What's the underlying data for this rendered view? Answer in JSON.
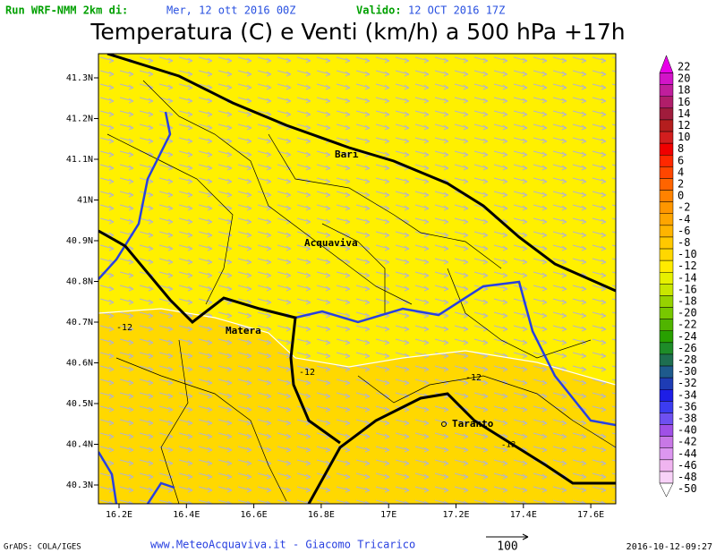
{
  "header": {
    "run_label": "Run WRF-NMM 2km di:",
    "run_date": "Mer, 12 ott 2016 00Z",
    "valid_label": "Valido:",
    "valid_date": "12 OCT 2016 17Z"
  },
  "title": "Temperatura (C) e Venti (km/h) a 500 hPa +17h",
  "map": {
    "lat_labels": [
      "41.3N",
      "41.2N",
      "41.1N",
      "41N",
      "40.9N",
      "40.8N",
      "40.7N",
      "40.6N",
      "40.5N",
      "40.4N",
      "40.3N"
    ],
    "lon_labels": [
      "16.2E",
      "16.4E",
      "16.6E",
      "16.8E",
      "17E",
      "17.2E",
      "17.4E",
      "17.6E"
    ],
    "places": [
      "Bari",
      "Acquaviva",
      "Matera",
      "Taranto"
    ],
    "contour_labels": [
      "-12",
      "-12",
      "-12",
      "-12"
    ]
  },
  "colorbar": {
    "levels": [
      {
        "label": "22",
        "color": "#e800e8"
      },
      {
        "label": "20",
        "color": "#d214c8"
      },
      {
        "label": "18",
        "color": "#c01e9c"
      },
      {
        "label": "16",
        "color": "#b01e6a"
      },
      {
        "label": "14",
        "color": "#a01c3c"
      },
      {
        "label": "12",
        "color": "#b41e1e"
      },
      {
        "label": "10",
        "color": "#d21e1e"
      },
      {
        "label": "8",
        "color": "#f00000"
      },
      {
        "label": "6",
        "color": "#ff2800"
      },
      {
        "label": "4",
        "color": "#ff4600"
      },
      {
        "label": "2",
        "color": "#ff6400"
      },
      {
        "label": "0",
        "color": "#ff8200"
      },
      {
        "label": "-2",
        "color": "#ff9600"
      },
      {
        "label": "-4",
        "color": "#ffa500"
      },
      {
        "label": "-6",
        "color": "#ffb400"
      },
      {
        "label": "-8",
        "color": "#ffc800"
      },
      {
        "label": "-10",
        "color": "#ffd700"
      },
      {
        "label": "-12",
        "color": "#ffeb00"
      },
      {
        "label": "-14",
        "color": "#e6f000"
      },
      {
        "label": "-16",
        "color": "#c8e600"
      },
      {
        "label": "-18",
        "color": "#96d200"
      },
      {
        "label": "-20",
        "color": "#78c800"
      },
      {
        "label": "-22",
        "color": "#50b400"
      },
      {
        "label": "-24",
        "color": "#28a000"
      },
      {
        "label": "-26",
        "color": "#1e8c28"
      },
      {
        "label": "-28",
        "color": "#1e6e50"
      },
      {
        "label": "-30",
        "color": "#1e5a8c"
      },
      {
        "label": "-32",
        "color": "#1e3cb4"
      },
      {
        "label": "-34",
        "color": "#1e1ee6"
      },
      {
        "label": "-36",
        "color": "#3c3cf0"
      },
      {
        "label": "-38",
        "color": "#6e50f0"
      },
      {
        "label": "-40",
        "color": "#a050e6"
      },
      {
        "label": "-42",
        "color": "#c878e6"
      },
      {
        "label": "-44",
        "color": "#dc96f0"
      },
      {
        "label": "-46",
        "color": "#f0b4f0"
      },
      {
        "label": "-48",
        "color": "#f8d2f8"
      },
      {
        "label": "-50",
        "color": "#ffffff"
      }
    ]
  },
  "footer": {
    "credit": "GrADS: COLA/IGES",
    "site": "www.MeteoAcquaviva.it - Giacomo Tricarico",
    "vector_scale": "100",
    "timestamp": "2016-10-12-09:27"
  }
}
